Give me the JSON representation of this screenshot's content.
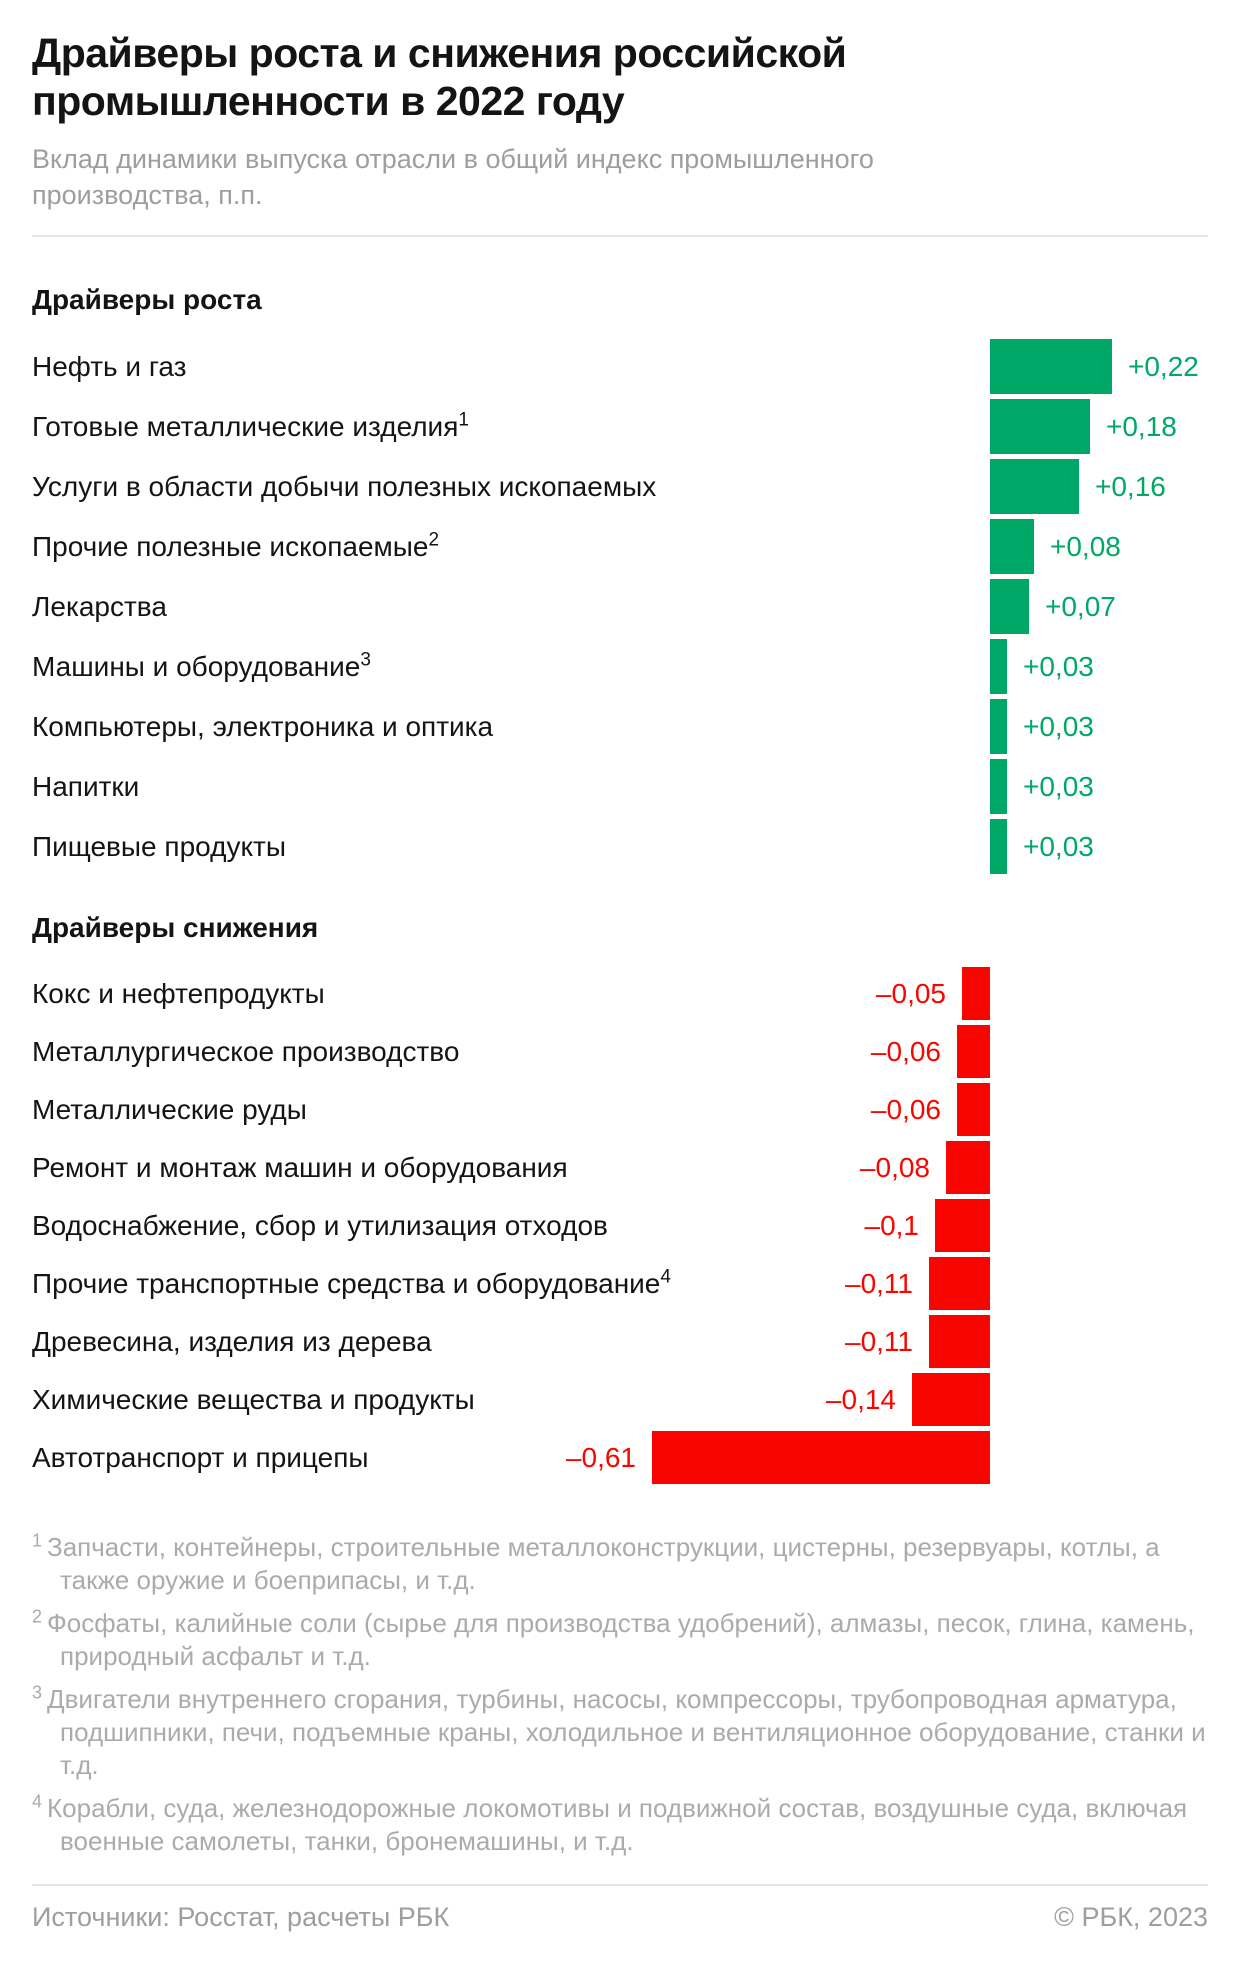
{
  "title": "Драйверы роста и снижения российской промышленности в 2022 году",
  "subtitle": "Вклад динамики выпуска отрасли в общий индекс промышленного производства, п.п.",
  "chart_data": {
    "type": "bar",
    "orientation": "horizontal",
    "unit": "п.п.",
    "grid": false,
    "value_axis_hidden": true,
    "colors": {
      "growth": "#00a868",
      "decline": "#f90500"
    },
    "sections": [
      {
        "id": "growth",
        "title": "Драйверы роста",
        "color": "#00a868",
        "rows": [
          {
            "label": "Нефть и газ",
            "sup": null,
            "value": 0.22,
            "value_label": "+0,22"
          },
          {
            "label": "Готовые металлические изделия",
            "sup": "1",
            "value": 0.18,
            "value_label": "+0,18"
          },
          {
            "label": "Услуги в области добычи полезных ископаемых",
            "sup": null,
            "value": 0.16,
            "value_label": "+0,16"
          },
          {
            "label": "Прочие полезные ископаемые",
            "sup": "2",
            "value": 0.08,
            "value_label": "+0,08"
          },
          {
            "label": "Лекарства",
            "sup": null,
            "value": 0.07,
            "value_label": "+0,07"
          },
          {
            "label": "Машины и оборудование",
            "sup": "3",
            "value": 0.03,
            "value_label": "+0,03"
          },
          {
            "label": "Компьютеры, электроника и оптика",
            "sup": null,
            "value": 0.03,
            "value_label": "+0,03"
          },
          {
            "label": "Напитки",
            "sup": null,
            "value": 0.03,
            "value_label": "+0,03"
          },
          {
            "label": "Пищевые продукты",
            "sup": null,
            "value": 0.03,
            "value_label": "+0,03"
          }
        ]
      },
      {
        "id": "decline",
        "title": "Драйверы снижения",
        "color": "#f90500",
        "rows": [
          {
            "label": "Кокс и нефтепродукты",
            "sup": null,
            "value": -0.05,
            "value_label": "–0,05"
          },
          {
            "label": "Металлургическое производство",
            "sup": null,
            "value": -0.06,
            "value_label": "–0,06"
          },
          {
            "label": "Металлические руды",
            "sup": null,
            "value": -0.06,
            "value_label": "–0,06"
          },
          {
            "label": "Ремонт и монтаж машин и оборудования",
            "sup": null,
            "value": -0.08,
            "value_label": "–0,08"
          },
          {
            "label": "Водоснабжение, сбор и утилизация отходов",
            "sup": null,
            "value": -0.1,
            "value_label": "–0,1"
          },
          {
            "label": "Прочие транспортные средства и оборудование",
            "sup": "4",
            "value": -0.11,
            "value_label": "–0,11"
          },
          {
            "label": "Древесина, изделия из дерева",
            "sup": null,
            "value": -0.11,
            "value_label": "–0,11"
          },
          {
            "label": "Химические вещества и продукты",
            "sup": null,
            "value": -0.14,
            "value_label": "–0,14"
          },
          {
            "label": "Автотранспорт и прицепы",
            "sup": null,
            "value": -0.61,
            "value_label": "–0,61"
          }
        ]
      }
    ]
  },
  "footnotes": [
    {
      "num": "1",
      "text": "Запчасти, контейнеры, строительные металлоконструкции, цистерны, резервуары, котлы, а также оружие и боеприпасы, и т.д."
    },
    {
      "num": "2",
      "text": "Фосфаты, калийные соли (сырье для производства удобрений), алмазы, песок, глина, камень, природный асфальт и т.д."
    },
    {
      "num": "3",
      "text": "Двигатели внутреннего сгорания, турбины, насосы, компрессоры, трубопроводная арматура, подшипники, печи, подъемные краны, холодильное и вентиляционное оборудование, станки и т.д."
    },
    {
      "num": "4",
      "text": "Корабли, суда, железнодорожные локомотивы и подвижной состав, воздушные суда, включая военные самолеты, танки, бронемашины, и т.д."
    }
  ],
  "footer": {
    "source": "Источники: Росстат, расчеты РБК",
    "copyright": "© РБК, 2023"
  }
}
